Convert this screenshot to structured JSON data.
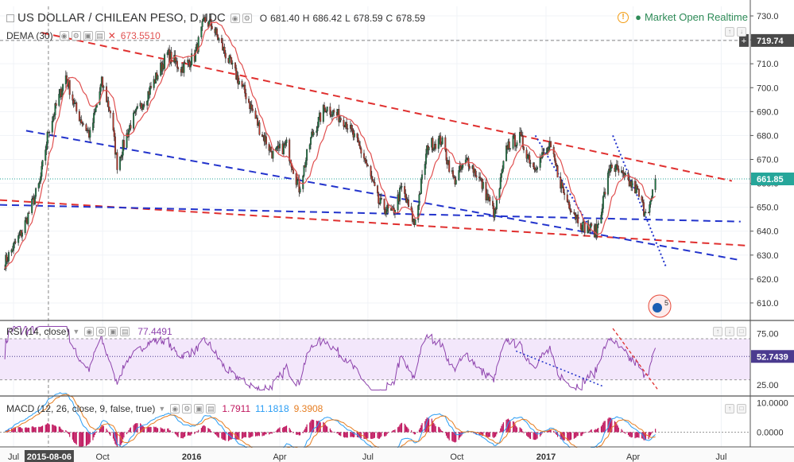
{
  "header": {
    "symbol_title": "US DOLLAR / CHILEAN PESO, D, IDC",
    "open_label": "O",
    "open": "681.40",
    "high_label": "H",
    "high": "686.42",
    "low_label": "L",
    "low": "678.59",
    "close_label": "C",
    "close": "678.59",
    "market_status": "Market Open Realtime",
    "status_color": "#2e8b57"
  },
  "dema": {
    "label": "DEMA (30)",
    "value": "673.5510",
    "color": "#e05050"
  },
  "rsi": {
    "label": "RSI (14, close)",
    "value": "77.4491",
    "last_badge": "52.7439",
    "color": "#8e44ad"
  },
  "macd": {
    "label": "MACD (12, 26, close, 9, false, true)",
    "v1": "1.7911",
    "v2": "11.1818",
    "v3": "9.3908",
    "c1": "#c0185f",
    "c2": "#2a9df4",
    "c3": "#e67e22"
  },
  "price_badges": {
    "crosshair": "719.74",
    "last": "661.85"
  },
  "x_axis": {
    "ticks": [
      "Jul",
      "Oct",
      "2016",
      "Apr",
      "Jul",
      "Oct",
      "2017",
      "Apr",
      "Jul"
    ],
    "crosshair_date": "2015-08-06"
  },
  "chart_data": [
    {
      "type": "candlestick",
      "title": "US DOLLAR / CHILEAN PESO, D, IDC",
      "y_ticks": [
        610,
        620,
        630,
        640,
        650,
        660,
        670,
        680,
        690,
        700,
        710,
        720,
        730
      ],
      "ylim": [
        603,
        734
      ],
      "x_start": "2015-06-17",
      "x_end": "2017-07-31",
      "anchors": [
        [
          "2015-06-22",
          627
        ],
        [
          "2015-07-10",
          640
        ],
        [
          "2015-07-28",
          660
        ],
        [
          "2015-08-06",
          682
        ],
        [
          "2015-08-24",
          705
        ],
        [
          "2015-09-04",
          690
        ],
        [
          "2015-09-18",
          680
        ],
        [
          "2015-09-30",
          702
        ],
        [
          "2015-10-09",
          690
        ],
        [
          "2015-10-16",
          668
        ],
        [
          "2015-10-30",
          685
        ],
        [
          "2015-11-20",
          700
        ],
        [
          "2015-12-07",
          714
        ],
        [
          "2015-12-21",
          708
        ],
        [
          "2016-01-04",
          713
        ],
        [
          "2016-01-14",
          728
        ],
        [
          "2016-01-22",
          726
        ],
        [
          "2016-02-05",
          714
        ],
        [
          "2016-02-26",
          697
        ],
        [
          "2016-03-11",
          683
        ],
        [
          "2016-03-25",
          672
        ],
        [
          "2016-04-08",
          676
        ],
        [
          "2016-04-21",
          658
        ],
        [
          "2016-05-04",
          680
        ],
        [
          "2016-05-18",
          692
        ],
        [
          "2016-06-08",
          686
        ],
        [
          "2016-06-27",
          671
        ],
        [
          "2016-07-12",
          652
        ],
        [
          "2016-07-26",
          647
        ],
        [
          "2016-08-05",
          658
        ],
        [
          "2016-08-18",
          643
        ],
        [
          "2016-09-01",
          676
        ],
        [
          "2016-09-15",
          678
        ],
        [
          "2016-09-28",
          661
        ],
        [
          "2016-10-12",
          670
        ],
        [
          "2016-10-24",
          662
        ],
        [
          "2016-11-09",
          647
        ],
        [
          "2016-11-22",
          676
        ],
        [
          "2016-12-05",
          679
        ],
        [
          "2016-12-19",
          667
        ],
        [
          "2017-01-05",
          675
        ],
        [
          "2017-01-20",
          655
        ],
        [
          "2017-02-08",
          642
        ],
        [
          "2017-02-22",
          640
        ],
        [
          "2017-03-09",
          668
        ],
        [
          "2017-03-23",
          662
        ],
        [
          "2017-04-05",
          657
        ],
        [
          "2017-04-12",
          649
        ],
        [
          "2017-04-19",
          651
        ],
        [
          "2017-04-24",
          662
        ]
      ],
      "trendlines": [
        {
          "from": [
            "2015-07-30",
            723
          ],
          "to": [
            "2017-07-12",
            661
          ],
          "color": "#e0302f",
          "style": "dashed"
        },
        {
          "from": [
            "2015-06-17",
            653
          ],
          "to": [
            "2017-07-26",
            634
          ],
          "color": "#e0302f",
          "style": "dashed"
        },
        {
          "from": [
            "2015-07-14",
            682
          ],
          "to": [
            "2017-07-19",
            628
          ],
          "color": "#2233cc",
          "style": "dashed"
        },
        {
          "from": [
            "2015-06-17",
            651
          ],
          "to": [
            "2017-07-21",
            644
          ],
          "color": "#2233cc",
          "style": "dashed"
        },
        {
          "from": [
            "2016-12-21",
            680
          ],
          "to": [
            "2017-02-22",
            637
          ],
          "color": "#2233cc",
          "style": "dotted"
        },
        {
          "from": [
            "2017-03-11",
            680
          ],
          "to": [
            "2017-05-05",
            625
          ],
          "color": "#2233cc",
          "style": "dotted"
        }
      ]
    },
    {
      "type": "line",
      "title": "RSI (14, close)",
      "y_ticks": [
        25,
        75
      ],
      "ylim": [
        15,
        87
      ],
      "band": [
        30,
        70
      ]
    },
    {
      "type": "line",
      "title": "MACD (12, 26, close, 9, false, true)",
      "y_ticks": [
        0,
        10
      ],
      "ylim": [
        -5,
        12
      ]
    }
  ]
}
